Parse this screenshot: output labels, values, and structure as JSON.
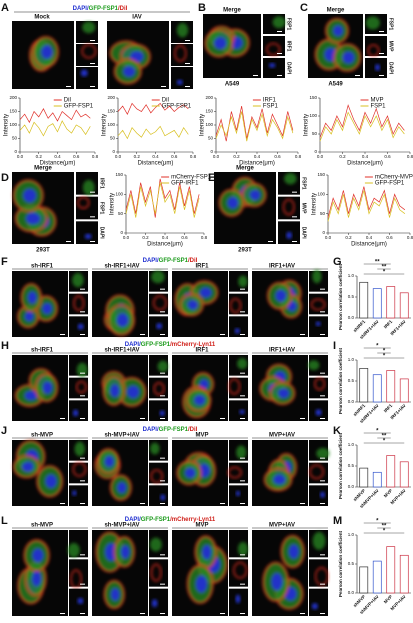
{
  "panels": [
    {
      "label": "A",
      "title_parts": [
        {
          "text": "DAPI/",
          "color": "#1f2fd0"
        },
        {
          "text": "GFP-FSP1",
          "color": "#1a9a1a"
        },
        {
          "text": "/DiI",
          "color": "#d0201a"
        }
      ],
      "groups": [
        "Mock",
        "IAV"
      ],
      "charts": [
        {
          "type": "line",
          "xlabel": "Distance(μm)",
          "ylabel": "Intensity",
          "xlim": [
            0,
            0.8
          ],
          "xticks": [
            {
              "value": 0,
              "label": "0.0"
            },
            0.2,
            0.4,
            0.6,
            0.8
          ],
          "ylim": [
            0,
            200
          ],
          "yticks": [
            0,
            50,
            100,
            150,
            200
          ],
          "x": [
            0,
            0.05,
            0.1,
            0.15,
            0.2,
            0.25,
            0.3,
            0.35,
            0.4,
            0.45,
            0.5,
            0.55,
            0.6,
            0.65,
            0.7,
            0.75
          ],
          "series": [
            {
              "name": "DiI",
              "color": "#e0302a",
              "values": [
                120,
                140,
                110,
                150,
                130,
                160,
                125,
                145,
                115,
                150,
                135,
                120,
                155,
                130,
                140,
                125
              ]
            },
            {
              "name": "GFP-FSP1",
              "color": "#d8c020",
              "values": [
                80,
                100,
                70,
                110,
                90,
                60,
                95,
                105,
                75,
                115,
                85,
                70,
                100,
                90,
                65,
                95
              ]
            }
          ]
        },
        {
          "type": "line",
          "xlabel": "Distance(μm)",
          "ylabel": "Intensity",
          "xlim": [
            0,
            0.8
          ],
          "xticks": [
            {
              "value": 0,
              "label": "0.0"
            },
            0.2,
            0.4,
            0.6,
            0.8
          ],
          "ylim": [
            0,
            200
          ],
          "yticks": [
            0,
            50,
            100,
            150,
            200
          ],
          "x": [
            0,
            0.05,
            0.1,
            0.15,
            0.2,
            0.25,
            0.3,
            0.35,
            0.4,
            0.45,
            0.5,
            0.55,
            0.6,
            0.65,
            0.7,
            0.75
          ],
          "series": [
            {
              "name": "DiI",
              "color": "#e0302a",
              "values": [
                150,
                170,
                140,
                180,
                160,
                150,
                175,
                145,
                165,
                180,
                155,
                170,
                150,
                165,
                175,
                160
              ]
            },
            {
              "name": "GFP-FSP1",
              "color": "#d8c020",
              "values": [
                60,
                80,
                50,
                90,
                70,
                55,
                85,
                65,
                75,
                95,
                60,
                70,
                80,
                55,
                90,
                65
              ]
            }
          ]
        }
      ]
    },
    {
      "label": "B",
      "title": "Merge",
      "channels": [
        "FSP1",
        "IRF1",
        "DAPI"
      ],
      "cell_line": "A549",
      "chart": {
        "type": "line",
        "xlabel": "Distance(μm)",
        "ylabel": "Intensity",
        "xlim": [
          0,
          0.8
        ],
        "xticks": [
          {
            "value": 0,
            "label": "0.0"
          },
          0.2,
          0.4,
          0.6,
          0.8
        ],
        "ylim": [
          0,
          200
        ],
        "yticks": [
          0,
          50,
          100,
          150,
          200
        ],
        "x": [
          0,
          0.05,
          0.1,
          0.15,
          0.2,
          0.25,
          0.3,
          0.35,
          0.4,
          0.45,
          0.5,
          0.55,
          0.6,
          0.65,
          0.7,
          0.75
        ],
        "series": [
          {
            "name": "IRF1",
            "color": "#e0302a",
            "values": [
              60,
              120,
              40,
              150,
              80,
              170,
              50,
              130,
              90,
              160,
              70,
              140,
              100,
              60,
              150,
              80
            ]
          },
          {
            "name": "FSP1",
            "color": "#d8c020",
            "values": [
              50,
              100,
              60,
              130,
              70,
              150,
              40,
              120,
              80,
              140,
              60,
              120,
              90,
              50,
              130,
              70
            ]
          }
        ]
      }
    },
    {
      "label": "C",
      "title": "Merge",
      "channels": [
        "FSP1",
        "MVP",
        "DAPI"
      ],
      "cell_line": "A549",
      "chart": {
        "type": "line",
        "xlabel": "Distance(μm)",
        "ylabel": "Intensity",
        "xlim": [
          0,
          0.8
        ],
        "xticks": [
          {
            "value": 0,
            "label": "0.0"
          },
          0.2,
          0.4,
          0.6,
          0.8
        ],
        "ylim": [
          0,
          150
        ],
        "yticks": [
          0,
          50,
          100,
          150
        ],
        "x": [
          0,
          0.05,
          0.1,
          0.15,
          0.2,
          0.25,
          0.3,
          0.35,
          0.4,
          0.45,
          0.5,
          0.55,
          0.6,
          0.65,
          0.7,
          0.75
        ],
        "series": [
          {
            "name": "MVP",
            "color": "#e0302a",
            "values": [
              40,
              80,
              60,
              100,
              70,
              130,
              90,
              60,
              110,
              80,
              120,
              70,
              100,
              50,
              80,
              60
            ]
          },
          {
            "name": "FSP1",
            "color": "#d8c020",
            "values": [
              30,
              70,
              50,
              90,
              60,
              110,
              80,
              50,
              100,
              70,
              100,
              60,
              90,
              40,
              70,
              50
            ]
          }
        ]
      }
    },
    {
      "label": "D",
      "title": "Merge",
      "channels": [
        "IRF1",
        "FSP1",
        "DAPI"
      ],
      "cell_line": "293T",
      "chart": {
        "type": "line",
        "xlabel": "Distance(μm)",
        "ylabel": "Intensity",
        "xlim": [
          0,
          0.8
        ],
        "xticks": [
          {
            "value": 0,
            "label": "0.0"
          },
          0.2,
          0.4,
          0.6,
          0.8
        ],
        "ylim": [
          0,
          150
        ],
        "yticks": [
          0,
          50,
          100,
          150
        ],
        "x": [
          0,
          0.05,
          0.1,
          0.15,
          0.2,
          0.25,
          0.3,
          0.35,
          0.4,
          0.45,
          0.5,
          0.55,
          0.6,
          0.65,
          0.7,
          0.75
        ],
        "series": [
          {
            "name": "mCherry-FSP1",
            "color": "#e0302a",
            "values": [
              60,
              110,
              50,
              130,
              80,
              120,
              40,
              140,
              90,
              110,
              60,
              130,
              70,
              120,
              50,
              100
            ]
          },
          {
            "name": "GFP-IRF1",
            "color": "#d8c020",
            "values": [
              50,
              100,
              40,
              120,
              70,
              110,
              50,
              130,
              80,
              100,
              50,
              120,
              60,
              110,
              40,
              90
            ]
          }
        ]
      }
    },
    {
      "label": "E",
      "title": "Merge",
      "channels": [
        "FSP1",
        "MVP",
        "DAPI"
      ],
      "cell_line": "293T",
      "chart": {
        "type": "line",
        "xlabel": "Distance(μm)",
        "ylabel": "Intensity",
        "xlim": [
          0,
          0.8
        ],
        "xticks": [
          {
            "value": 0,
            "label": "0.0"
          },
          0.2,
          0.4,
          0.6,
          0.8
        ],
        "ylim": [
          0,
          150
        ],
        "yticks": [
          0,
          50,
          100,
          150
        ],
        "x": [
          0,
          0.05,
          0.1,
          0.15,
          0.2,
          0.25,
          0.3,
          0.35,
          0.4,
          0.45,
          0.5,
          0.55,
          0.6,
          0.65,
          0.7,
          0.75
        ],
        "series": [
          {
            "name": "mCherry-MVP",
            "color": "#e0302a",
            "values": [
              40,
              90,
              60,
              110,
              50,
              100,
              70,
              120,
              60,
              90,
              80,
              110,
              50,
              100,
              70,
              60
            ]
          },
          {
            "name": "GFP-FSP1",
            "color": "#d8c020",
            "values": [
              30,
              80,
              50,
              100,
              40,
              90,
              60,
              110,
              50,
              80,
              70,
              100,
              40,
              90,
              60,
              50
            ]
          }
        ]
      }
    },
    {
      "label": "F",
      "title_parts": [
        {
          "text": "DAPI/",
          "color": "#1f2fd0"
        },
        {
          "text": "GFP-FSP1",
          "color": "#1a9a1a"
        },
        {
          "text": "/DiI",
          "color": "#d0201a"
        }
      ],
      "conditions": [
        "sh-IRF1",
        "sh-IRF1+IAV",
        "IRF1",
        "IRF1+IAV"
      ]
    },
    {
      "label": "G",
      "chart": {
        "type": "bar",
        "ylabel": "Pearson correlation coefficient",
        "categories": [
          "shIRF1",
          "shIRF1+IAV",
          "IRF1",
          "IRF1+IAV"
        ],
        "values": [
          0.85,
          0.7,
          0.75,
          0.6
        ],
        "colors": [
          "#333333",
          "#3355cc",
          "#cc3344",
          "#cc3344"
        ],
        "ylim": [
          0,
          1
        ],
        "yticks": [
          {
            "value": 0,
            "label": "0.0"
          },
          0.5,
          {
            "value": 1,
            "label": "1.0"
          }
        ],
        "annotations": [
          "**",
          "**",
          "*"
        ]
      }
    },
    {
      "label": "H",
      "title_parts": [
        {
          "text": "DAPI/",
          "color": "#1f2fd0"
        },
        {
          "text": "GFP-FSP1",
          "color": "#1a9a1a"
        },
        {
          "text": "/mCherry-Lyn11",
          "color": "#d0201a"
        }
      ],
      "conditions": [
        "sh-IRF1",
        "sh-IRF1+IAV",
        "IRF1",
        "IRF1+IAV"
      ]
    },
    {
      "label": "I",
      "chart": {
        "type": "bar",
        "ylabel": "Pearson correlation coefficient",
        "categories": [
          "shIRF1",
          "shIRF1+IAV",
          "IRF1",
          "IRF1+IAV"
        ],
        "values": [
          0.8,
          0.65,
          0.75,
          0.55
        ],
        "colors": [
          "#333333",
          "#3355cc",
          "#cc3344",
          "#cc3344"
        ],
        "ylim": [
          0,
          1
        ],
        "yticks": [
          {
            "value": 0,
            "label": "0.0"
          },
          0.5,
          {
            "value": 1,
            "label": "1.0"
          }
        ],
        "annotations": [
          "*",
          "*",
          "*"
        ]
      }
    },
    {
      "label": "J",
      "title_parts": [
        {
          "text": "DAPI/",
          "color": "#1f2fd0"
        },
        {
          "text": "GFP-FSP1",
          "color": "#1a9a1a"
        },
        {
          "text": "/DiI",
          "color": "#d0201a"
        }
      ],
      "conditions": [
        "sh-MVP",
        "sh-MVP+IAV",
        "MVP",
        "MVP+IAV"
      ]
    },
    {
      "label": "K",
      "chart": {
        "type": "bar",
        "ylabel": "Pearson correlation coefficient",
        "categories": [
          "shMVP",
          "shMVP+IAV",
          "MVP",
          "MVP+IAV"
        ],
        "values": [
          0.45,
          0.35,
          0.75,
          0.6
        ],
        "colors": [
          "#333333",
          "#3355cc",
          "#cc3344",
          "#cc3344"
        ],
        "ylim": [
          0,
          1
        ],
        "yticks": [
          {
            "value": 0,
            "label": "0.0"
          },
          0.5,
          {
            "value": 1,
            "label": "1.0"
          }
        ],
        "annotations": [
          "*",
          "**",
          "*"
        ]
      }
    },
    {
      "label": "L",
      "title_parts": [
        {
          "text": "DAPI/",
          "color": "#1f2fd0"
        },
        {
          "text": "GFP-FSP1",
          "color": "#1a9a1a"
        },
        {
          "text": "/mCherry-Lyn11",
          "color": "#d0201a"
        }
      ],
      "conditions": [
        "sh-MVP",
        "sh-MVP+IAV",
        "MVP",
        "MVP+IAV"
      ]
    },
    {
      "label": "M",
      "chart": {
        "type": "bar",
        "ylabel": "Pearson correlation coefficient",
        "categories": [
          "shMVP",
          "shMVP+IAV",
          "MVP",
          "MVP+IAV"
        ],
        "values": [
          0.45,
          0.55,
          0.8,
          0.65
        ],
        "colors": [
          "#333333",
          "#3355cc",
          "#cc3344",
          "#cc3344"
        ],
        "ylim": [
          0,
          1
        ],
        "yticks": [
          {
            "value": 0,
            "label": "0.0"
          },
          0.5,
          {
            "value": 1,
            "label": "1.0"
          }
        ],
        "annotations": [
          "*",
          "**",
          "*"
        ]
      }
    }
  ]
}
